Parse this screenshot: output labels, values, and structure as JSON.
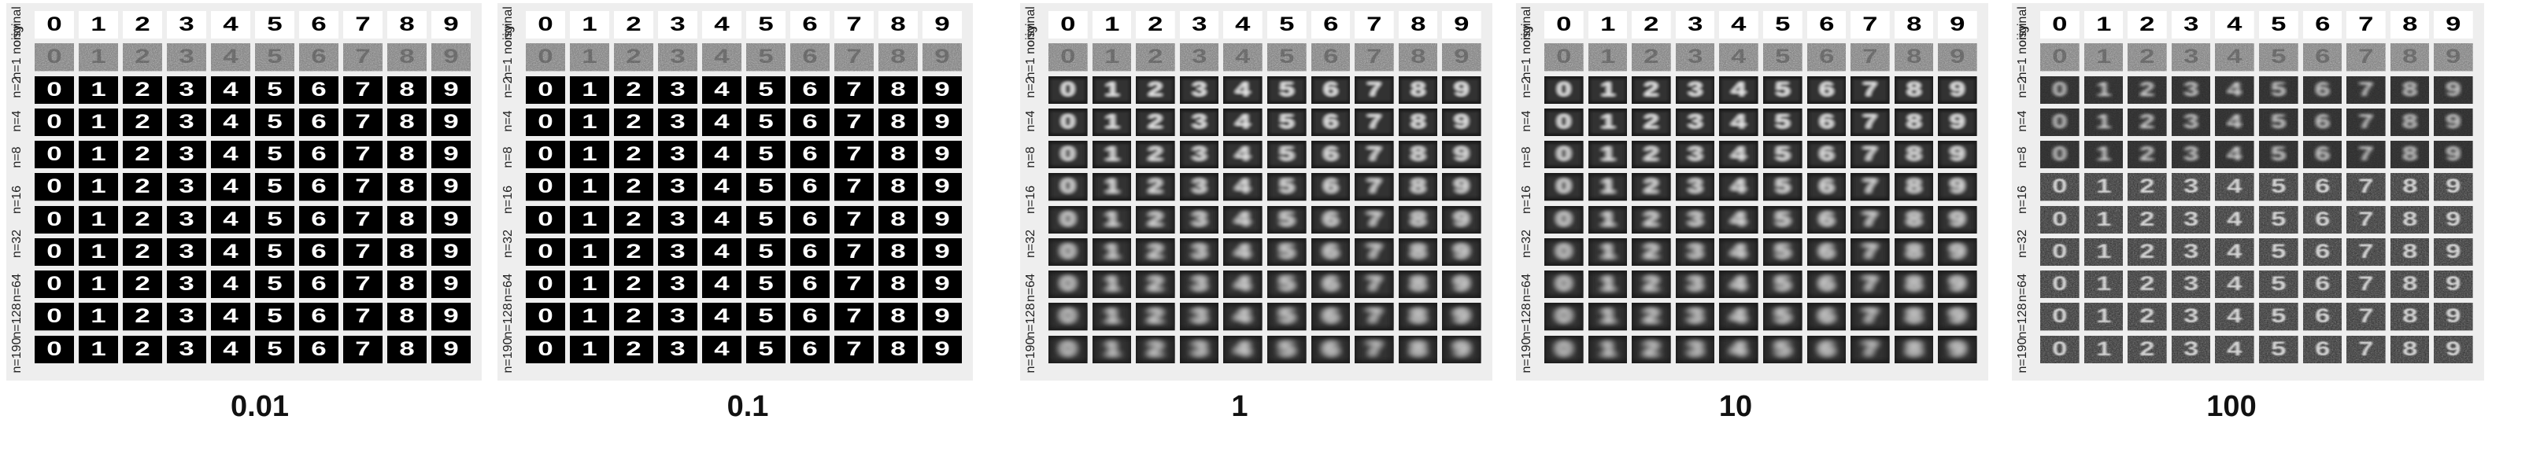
{
  "row_labels": [
    "original",
    "n=1 noisy",
    "n=2",
    "n=4",
    "n=8",
    "n=16",
    "n=32",
    "n=64",
    "n=128",
    "n=190"
  ],
  "digits": [
    "0",
    "1",
    "2",
    "3",
    "4",
    "5",
    "6",
    "7",
    "8",
    "9"
  ],
  "panels": [
    {
      "caption": "0.01",
      "style": "binary"
    },
    {
      "caption": "0.1",
      "style": "binary"
    },
    {
      "caption": "1",
      "style": "blur"
    },
    {
      "caption": "10",
      "style": "blur"
    },
    {
      "caption": "100",
      "style": "texture"
    }
  ]
}
